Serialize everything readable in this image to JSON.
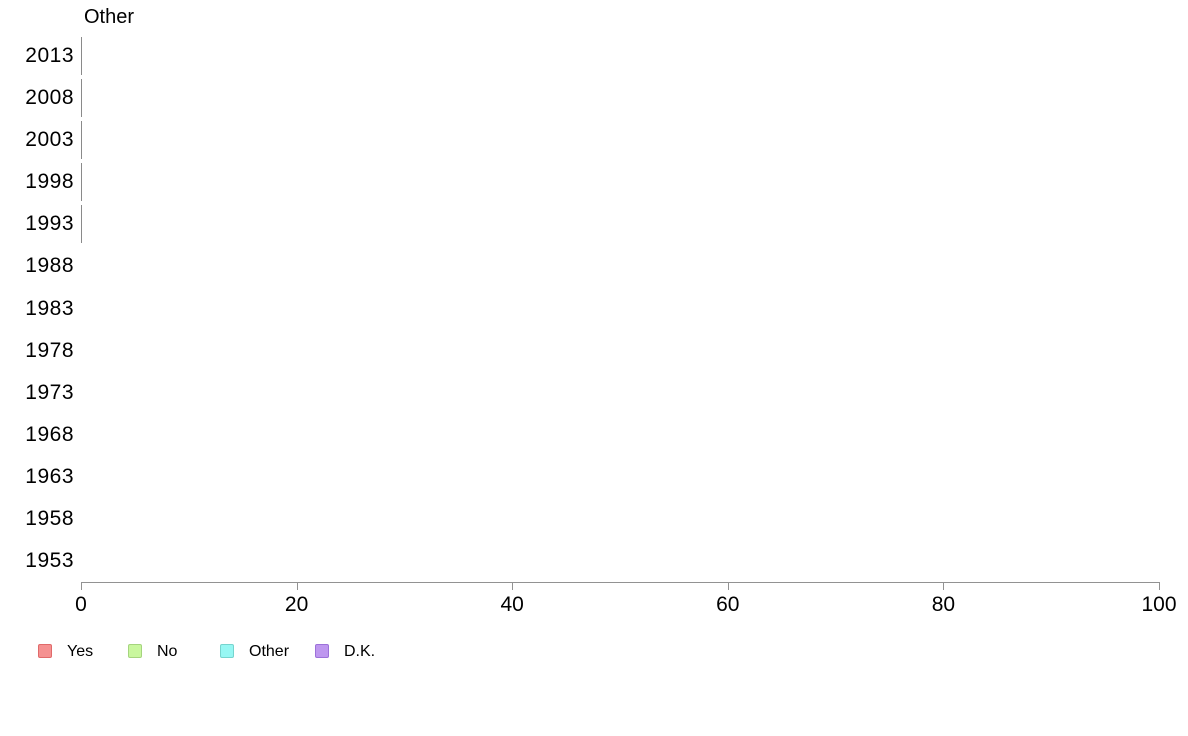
{
  "chart_data": {
    "type": "bar",
    "orientation": "horizontal",
    "stacked": true,
    "title": "Other",
    "categories": [
      "2013",
      "2008",
      "2003",
      "1998",
      "1993",
      "1988",
      "1983",
      "1978",
      "1973",
      "1968",
      "1963",
      "1958",
      "1953"
    ],
    "series": [
      {
        "name": "Yes",
        "color": "#f59191",
        "border": "#e06a6a",
        "values": [
          0,
          0,
          0,
          0,
          0,
          null,
          null,
          null,
          null,
          null,
          null,
          null,
          null
        ]
      },
      {
        "name": "No",
        "color": "#c9f79e",
        "border": "#a5d47e",
        "values": [
          0,
          0,
          0,
          0,
          0,
          null,
          null,
          null,
          null,
          null,
          null,
          null,
          null
        ]
      },
      {
        "name": "Other",
        "color": "#97f7f3",
        "border": "#76d4ce",
        "values": [
          0,
          0,
          0,
          0,
          0,
          null,
          null,
          null,
          null,
          null,
          null,
          null,
          null
        ]
      },
      {
        "name": "D.K.",
        "color": "#be97ef",
        "border": "#9c71d9",
        "values": [
          0,
          0,
          0,
          0,
          0,
          null,
          null,
          null,
          null,
          null,
          null,
          null,
          null
        ]
      }
    ],
    "xlabel": "",
    "ylabel": "",
    "xlim": [
      0,
      100
    ],
    "xticks": [
      0,
      20,
      40,
      60,
      80,
      100
    ],
    "grid": false,
    "legend_position": "bottom",
    "axis_color": "#929292",
    "zero_bar_stroke_color": "#8a8a8a",
    "background_color": "#ffffff",
    "text_color": "#000000"
  }
}
